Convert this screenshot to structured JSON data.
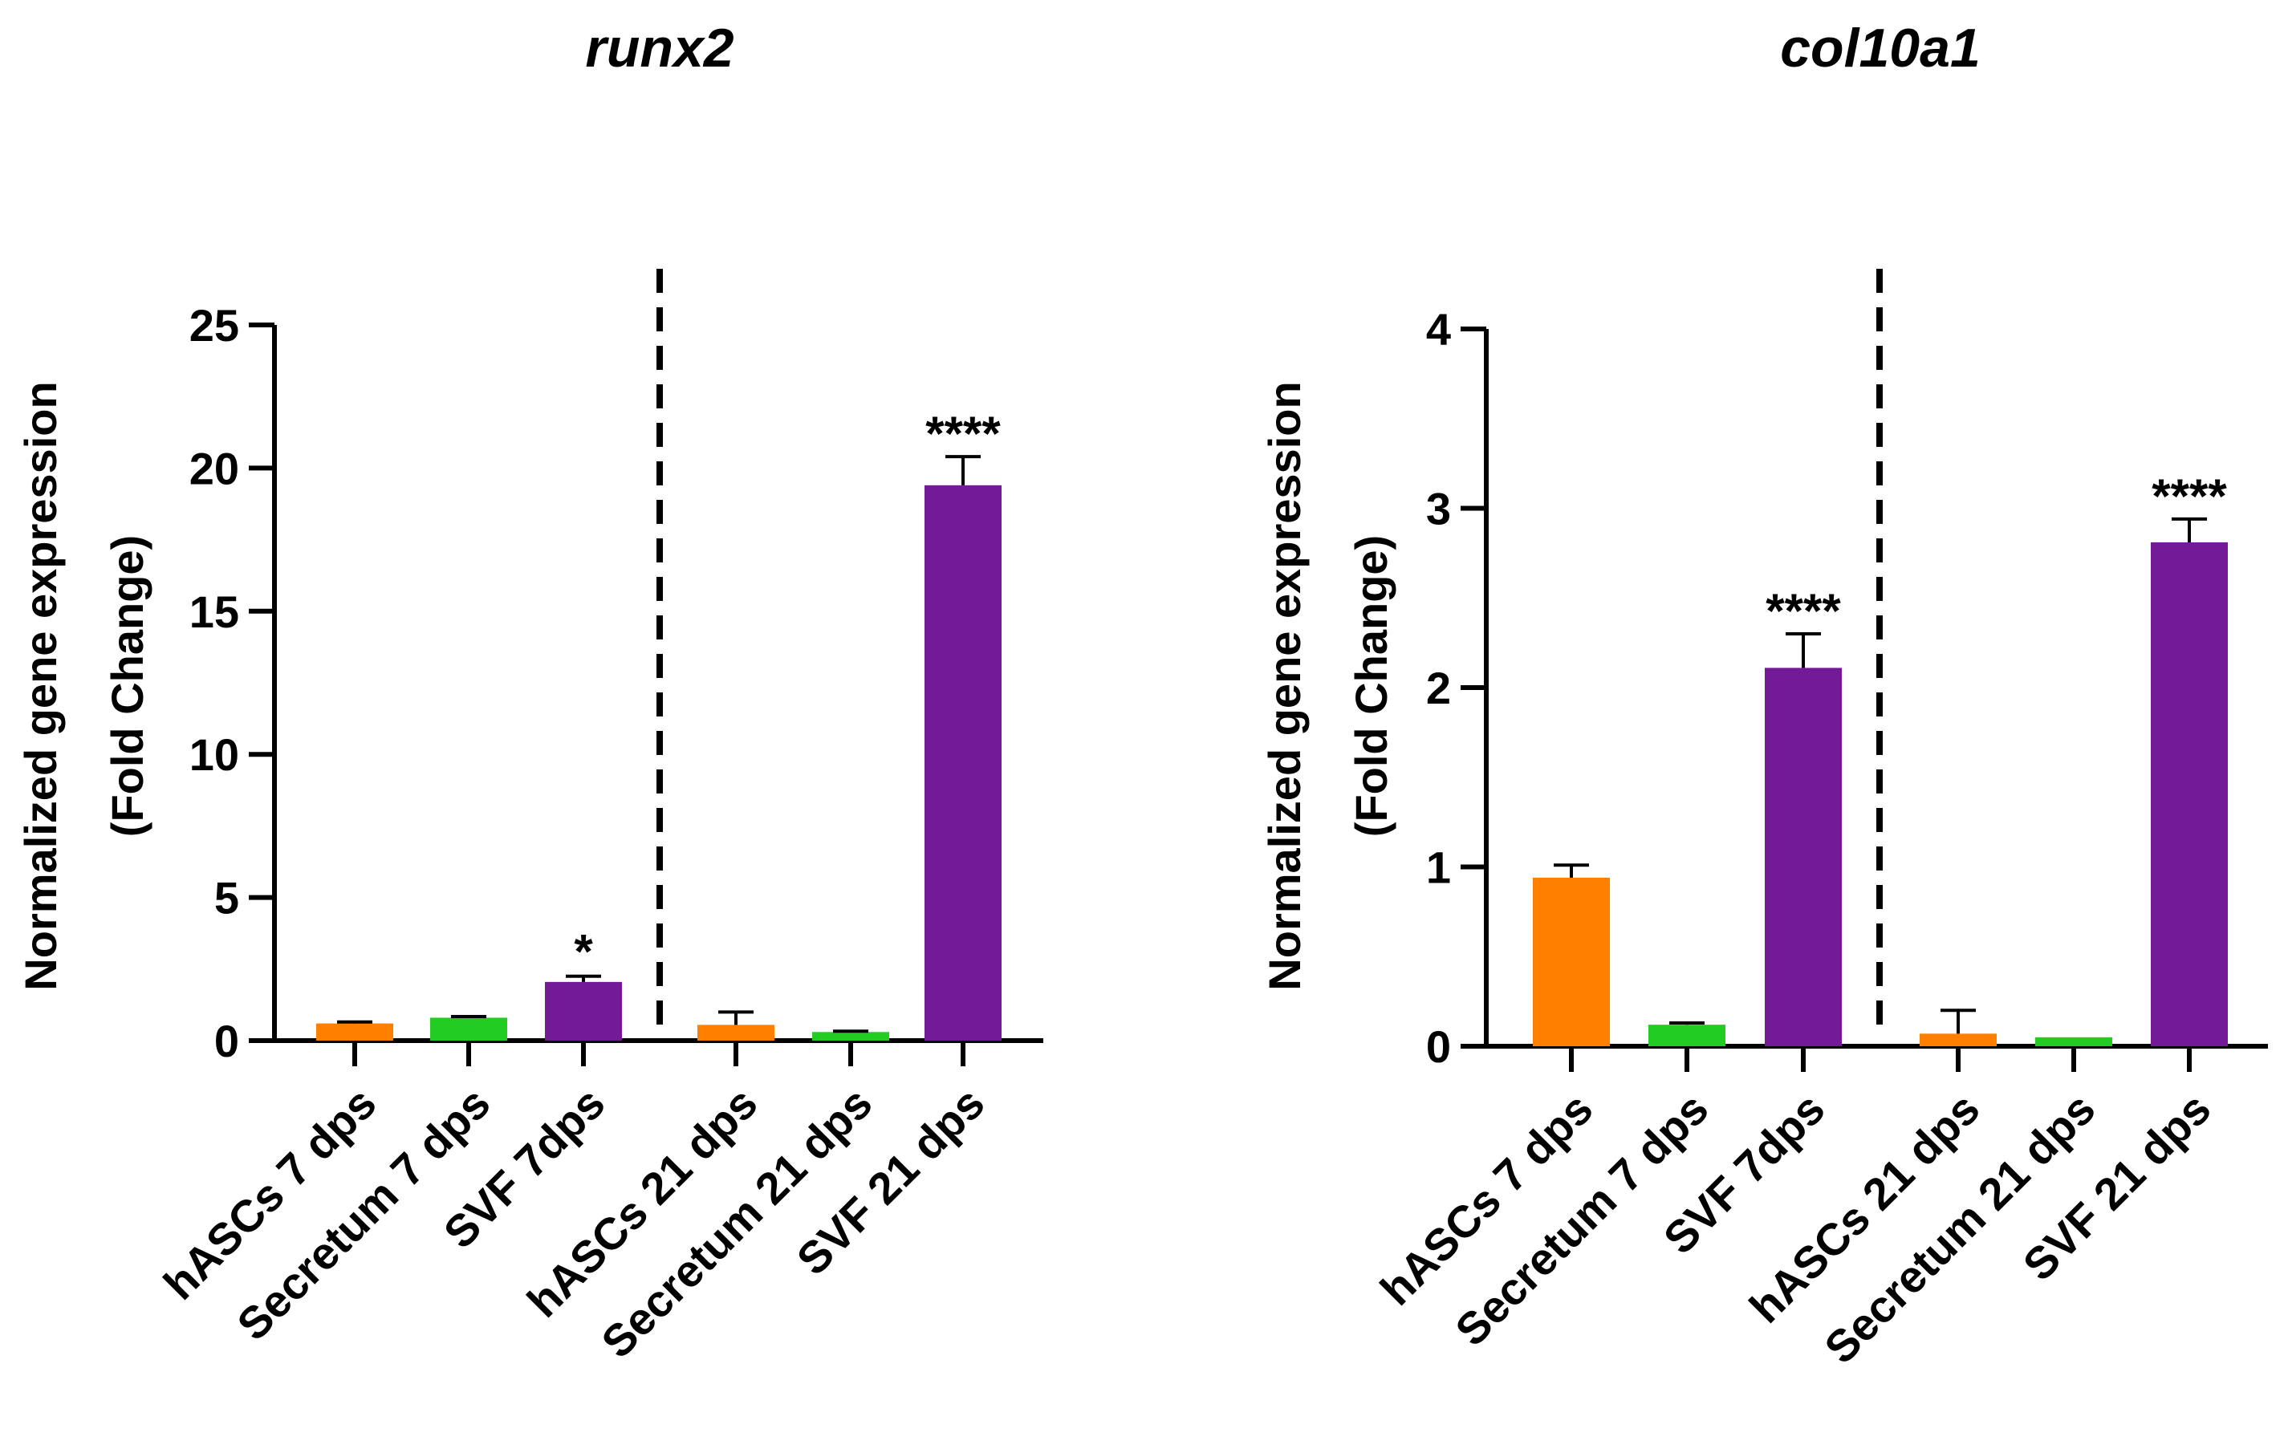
{
  "chart_data": [
    {
      "type": "bar",
      "title": "runx2",
      "ylabel_line1": "Normalized gene expression",
      "ylabel_line2": "(Fold Change)",
      "xlabel": "",
      "ylim": [
        0,
        25
      ],
      "yticks": [
        0,
        5,
        10,
        15,
        20,
        25
      ],
      "categories": [
        "hASCs 7 dps",
        "Secretum 7 dps",
        "SVF 7dps",
        "hASCs 21 dps",
        "Secretum 21 dps",
        "SVF 21 dps"
      ],
      "values": [
        0.6,
        0.8,
        2.05,
        0.55,
        0.3,
        19.4
      ],
      "errors": [
        0.05,
        0.04,
        0.2,
        0.45,
        0.03,
        1.0
      ],
      "colors": [
        "#FF7F00",
        "#22CC22",
        "#731B96",
        "#FF7F00",
        "#22CC22",
        "#731B96"
      ],
      "significance": [
        "",
        "",
        "*",
        "",
        "",
        "****"
      ],
      "divider_after_index": 2,
      "grid": false
    },
    {
      "type": "bar",
      "title": "col10a1",
      "ylabel_line1": "Normalized gene expression",
      "ylabel_line2": "(Fold Change)",
      "xlabel": "",
      "ylim": [
        0,
        4
      ],
      "yticks": [
        0,
        1,
        2,
        3,
        4
      ],
      "categories": [
        "hASCs 7 dps",
        "Secretum 7 dps",
        "SVF 7dps",
        "hASCs 21 dps",
        "Secretum 21 dps",
        "SVF 21 dps"
      ],
      "values": [
        0.94,
        0.12,
        2.11,
        0.07,
        0.05,
        2.81
      ],
      "errors": [
        0.07,
        0.01,
        0.19,
        0.13,
        0.0,
        0.13
      ],
      "colors": [
        "#FF7F00",
        "#22CC22",
        "#731B96",
        "#FF7F00",
        "#22CC22",
        "#731B96"
      ],
      "significance": [
        "",
        "",
        "****",
        "",
        "",
        "****"
      ],
      "divider_after_index": 2,
      "grid": false
    }
  ]
}
